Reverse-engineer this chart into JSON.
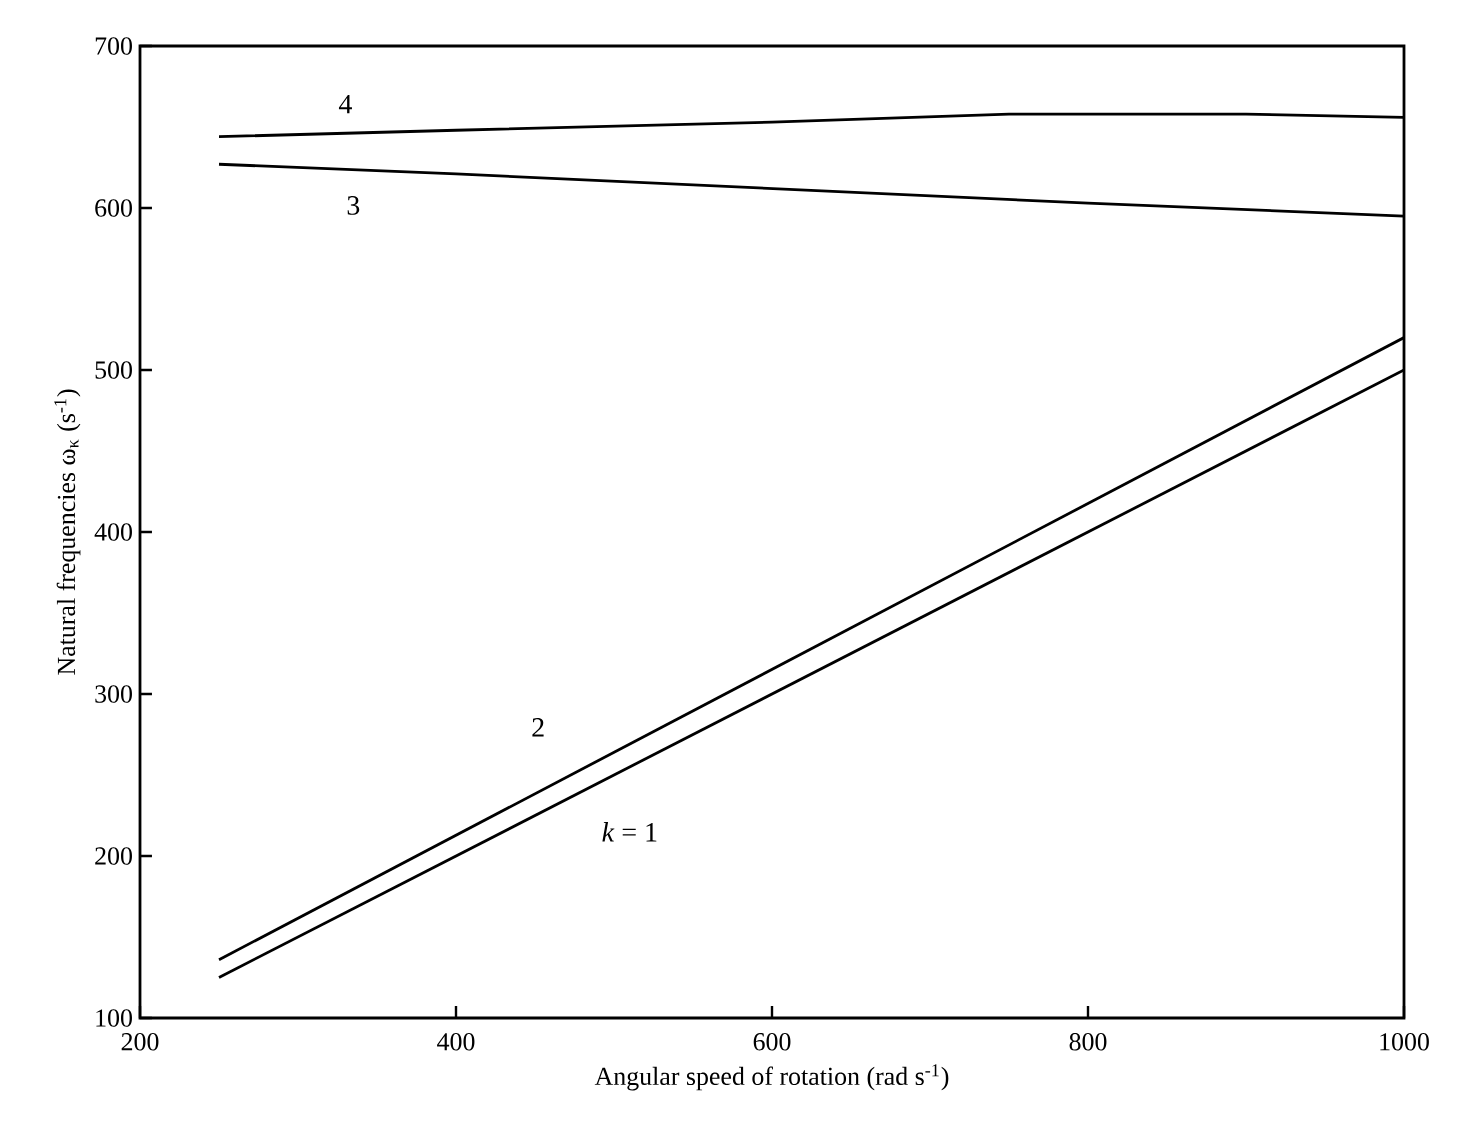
{
  "chart_data": {
    "type": "line",
    "xlabel": "Angular speed of rotation (rad s$^{-1}$)",
    "ylabel": "Natural frequencies ω$_{κ}$ (s$^{-1}$)",
    "xlim": [
      200,
      1000
    ],
    "ylim": [
      100,
      700
    ],
    "xticks": [
      200,
      400,
      600,
      800,
      1000
    ],
    "yticks": [
      100,
      200,
      300,
      400,
      500,
      600,
      700
    ],
    "grid": false,
    "legend": false,
    "marker": "none",
    "line_style": "solid",
    "series": [
      {
        "name": "*k* = 1",
        "color": "#000000",
        "x": [
          250,
          1000
        ],
        "values": [
          125,
          500
        ]
      },
      {
        "name": "2",
        "color": "#000000",
        "x": [
          250,
          1000
        ],
        "values": [
          136,
          520
        ]
      },
      {
        "name": "3",
        "color": "#000000",
        "x": [
          250,
          400,
          600,
          800,
          1000
        ],
        "values": [
          627,
          621,
          612,
          603,
          595
        ]
      },
      {
        "name": "4",
        "color": "#000000",
        "x": [
          250,
          400,
          600,
          750,
          900,
          1000
        ],
        "values": [
          644,
          648,
          653,
          658,
          658,
          656
        ]
      }
    ]
  }
}
